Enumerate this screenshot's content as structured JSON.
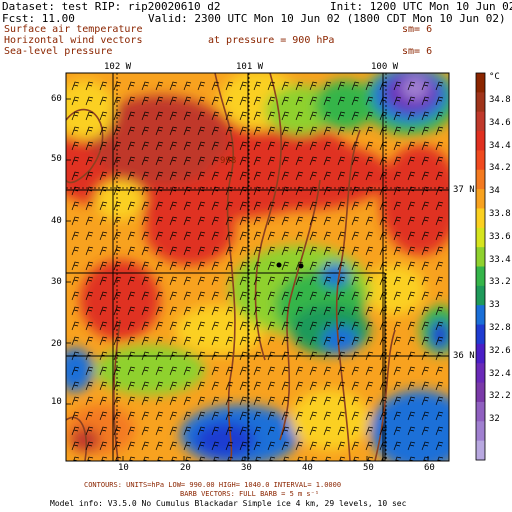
{
  "header": {
    "dataset_line": "Dataset: test  RIP: rip20020610 d2",
    "init_line": "Init: 1200 UTC Mon 10 Jun 02",
    "fcst_line": "Fcst:    11.00",
    "valid_line": "Valid: 2300 UTC Mon 10 Jun 02 (1800 CDT Mon 10 Jun 02)"
  },
  "fields": {
    "field1": "Surface air temperature",
    "field1_sm": "sm= 6",
    "field2": "Horizontal wind vectors",
    "field2_pressure": "at pressure =  900 hPa",
    "field3": "Sea-level pressure",
    "field3_sm": "sm= 6"
  },
  "map": {
    "lon_labels": [
      "102 W",
      "101 W",
      "100 W"
    ],
    "lat_labels": [
      "37 N",
      "36 N"
    ],
    "x_ticks": [
      "10",
      "20",
      "30",
      "40",
      "50",
      "60"
    ],
    "y_ticks": [
      "10",
      "20",
      "30",
      "40",
      "50",
      "60"
    ],
    "isobar_label": "998"
  },
  "colorbar": {
    "unit": "°C",
    "labels": [
      "34.8",
      "34.6",
      "34.4",
      "34.2",
      "34",
      "33.8",
      "33.6",
      "33.4",
      "33.2",
      "33",
      "32.8",
      "32.6",
      "32.4",
      "32.2",
      "32"
    ],
    "colors": [
      "#8b2500",
      "#a0341a",
      "#c0392b",
      "#e03020",
      "#f04a1f",
      "#f47a20",
      "#f8a21f",
      "#fbd020",
      "#d6e41e",
      "#8fd12e",
      "#35b54a",
      "#1f9a5a",
      "#1a6fd8",
      "#1f3cd1",
      "#4a1fc6",
      "#6a2ab8",
      "#7a3aa8",
      "#9060c0",
      "#a080d0",
      "#b8a8e0"
    ]
  },
  "footer": {
    "contours": "CONTOURS:  UNITS=hPa  LOW=   990.00      HIGH=  1040.0      INTERVAL=    1.0000",
    "barb": "BARB VECTORS:  FULL BARB = 5 m s⁻¹",
    "model": "Model info: V3.5.0 No Cumulus Blackadar  Simple ice    4 km,  29 levels,   10 sec"
  }
}
